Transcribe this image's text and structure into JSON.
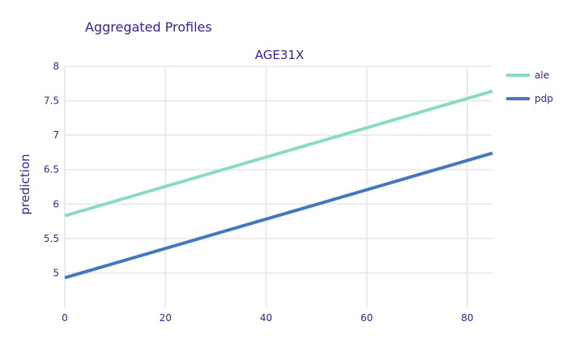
{
  "chart_data": {
    "type": "line",
    "title": "Aggregated Profiles",
    "subtitle": "AGE31X",
    "xlabel": "",
    "ylabel": "prediction",
    "xlim": [
      0,
      85
    ],
    "ylim": [
      4.5,
      8
    ],
    "x_ticks": [
      0,
      20,
      40,
      60,
      80
    ],
    "y_ticks": [
      "5",
      "5.5",
      "6",
      "6.5",
      "7",
      "7.5",
      "8"
    ],
    "grid": true,
    "legend_position": "right",
    "series": [
      {
        "name": "ale",
        "color": "#8bdcbe",
        "x": [
          0,
          85
        ],
        "y": [
          5.83,
          7.64
        ]
      },
      {
        "name": "pdp",
        "color": "#4378bf",
        "x": [
          0,
          85
        ],
        "y": [
          4.93,
          6.74
        ]
      }
    ]
  }
}
